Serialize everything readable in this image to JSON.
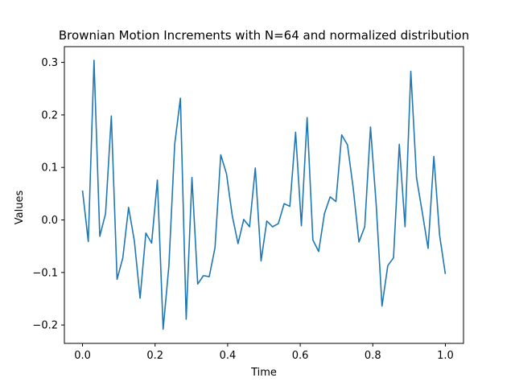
{
  "chart_data": {
    "type": "line",
    "title": "Brownian Motion Increments with N=64 and normalized distribution",
    "xlabel": "Time",
    "ylabel": "Values",
    "xlim": [
      -0.05,
      1.05
    ],
    "ylim": [
      -0.235,
      0.33
    ],
    "xticks": [
      0.0,
      0.2,
      0.4,
      0.6,
      0.8,
      1.0
    ],
    "xtick_labels": [
      "0.0",
      "0.2",
      "0.4",
      "0.6",
      "0.8",
      "1.0"
    ],
    "yticks": [
      -0.2,
      -0.1,
      0.0,
      0.1,
      0.2,
      0.3
    ],
    "ytick_labels": [
      "−0.2",
      "−0.1",
      "0.0",
      "0.1",
      "0.2",
      "0.3"
    ],
    "grid": false,
    "line_color": "#1f77b4",
    "series": [
      {
        "x": [
          0.0,
          0.0159,
          0.0317,
          0.0476,
          0.0635,
          0.0794,
          0.0952,
          0.1111,
          0.127,
          0.1429,
          0.1587,
          0.1746,
          0.1905,
          0.2063,
          0.2222,
          0.2381,
          0.254,
          0.2698,
          0.2857,
          0.3016,
          0.3175,
          0.3333,
          0.3492,
          0.3651,
          0.381,
          0.3968,
          0.4127,
          0.4286,
          0.4444,
          0.4603,
          0.4762,
          0.4921,
          0.5079,
          0.5238,
          0.5397,
          0.5556,
          0.5714,
          0.5873,
          0.6032,
          0.619,
          0.6349,
          0.6508,
          0.6667,
          0.6825,
          0.6984,
          0.7143,
          0.7302,
          0.746,
          0.7619,
          0.7778,
          0.7937,
          0.8095,
          0.8254,
          0.8413,
          0.8571,
          0.873,
          0.8889,
          0.9048,
          0.9206,
          0.9365,
          0.9524,
          0.9683,
          0.9841,
          1.0
        ],
        "values": [
          0.056,
          -0.041,
          0.304,
          -0.031,
          0.012,
          0.198,
          -0.113,
          -0.072,
          0.024,
          -0.04,
          -0.149,
          -0.025,
          -0.044,
          0.076,
          -0.208,
          -0.087,
          0.144,
          0.232,
          -0.189,
          0.081,
          -0.122,
          -0.106,
          -0.108,
          -0.053,
          0.124,
          0.088,
          0.008,
          -0.045,
          0.001,
          -0.013,
          0.099,
          -0.078,
          -0.002,
          -0.013,
          -0.007,
          0.031,
          0.026,
          0.167,
          -0.011,
          0.195,
          -0.038,
          -0.06,
          0.012,
          0.044,
          0.035,
          0.162,
          0.143,
          0.061,
          -0.042,
          -0.013,
          0.177,
          0.028,
          -0.164,
          -0.087,
          -0.072,
          0.144,
          -0.013,
          0.283,
          0.08,
          0.014,
          -0.054,
          0.121,
          -0.029,
          -0.103
        ]
      }
    ]
  }
}
